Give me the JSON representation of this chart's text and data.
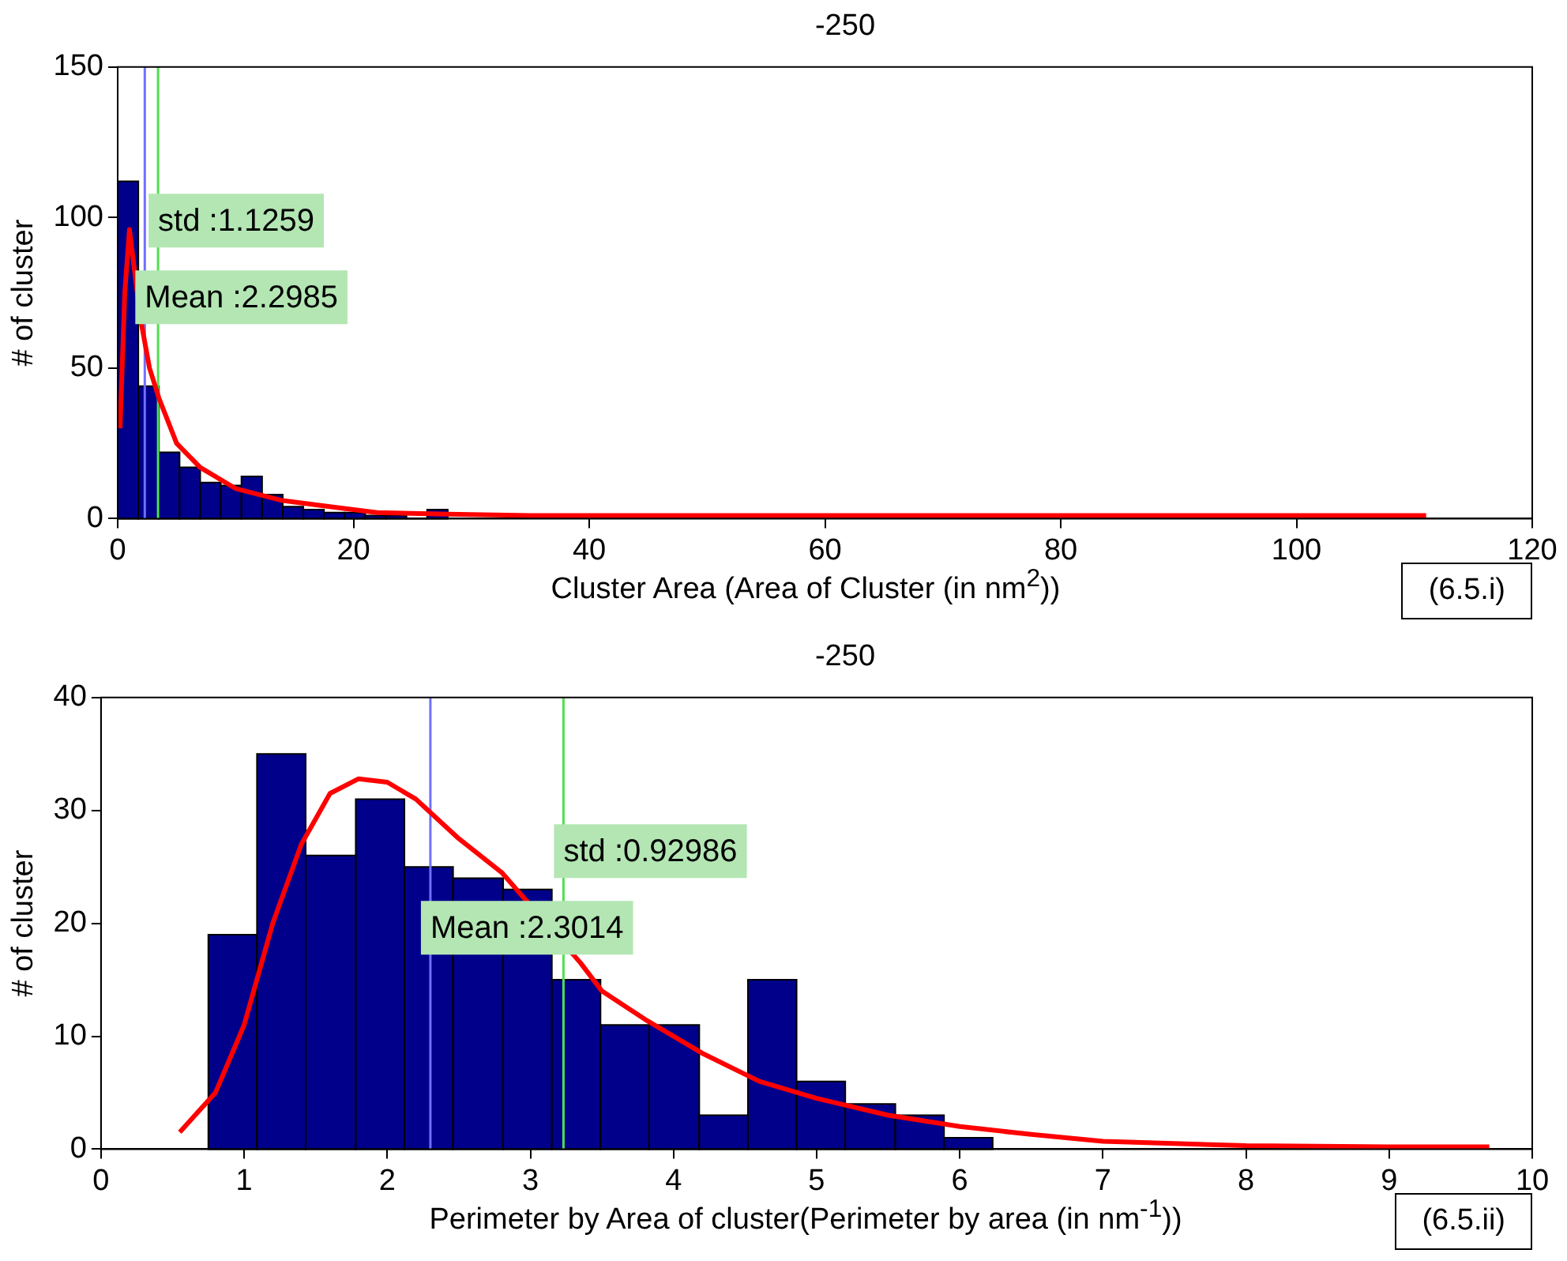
{
  "chart_data": [
    {
      "type": "histogram",
      "title": "-250",
      "xlabel": "Cluster Area (Area of Cluster (in nm$^{2}$))",
      "ylabel": "# of cluster",
      "color": "#00008b",
      "bins": [
        0,
        1.75,
        3.5,
        5.25,
        7,
        8.75,
        10.5,
        12.25,
        14,
        15.75,
        17.5,
        19.25,
        21,
        22.75,
        24.5,
        26.25,
        28
      ],
      "values": [
        112,
        44,
        22,
        17,
        12,
        11,
        14,
        8,
        4,
        3,
        2,
        2,
        1,
        1,
        0,
        3
      ],
      "series": [
        {
          "type": "line",
          "color": "#ff0000",
          "x": [
            0.2,
            0.6,
            1.0,
            1.5,
            2,
            2.7,
            3.5,
            5,
            7,
            10,
            14,
            18,
            22,
            28,
            35,
            50,
            80,
            111
          ],
          "values": [
            30,
            75,
            96,
            80,
            65,
            50,
            40,
            25,
            17,
            10,
            6,
            4,
            2,
            1.5,
            1,
            1,
            1,
            1
          ]
        }
      ],
      "xlim": [
        0,
        120
      ],
      "xticks": [
        0,
        20,
        40,
        60,
        80,
        100,
        120
      ],
      "ylim": [
        0,
        150
      ],
      "yticks": [
        0,
        50,
        100,
        150
      ],
      "ref_lines": [
        {
          "axis": "x",
          "value": 2.2985,
          "color": "#7070ff"
        },
        {
          "axis": "x",
          "value": 3.4244,
          "color": "#50e050"
        }
      ],
      "annotations": [
        "std :1.1259",
        "Mean :2.2985",
        "(6.5.i)"
      ]
    },
    {
      "type": "histogram",
      "title": "-250",
      "xlabel": "Perimeter by Area of cluster(Perimeter by area (in nm$^{-1}$))",
      "ylabel": "# of cluster",
      "color": "#00008b",
      "bins": [
        0.75,
        1.09,
        1.43,
        1.78,
        2.12,
        2.46,
        2.81,
        3.15,
        3.49,
        3.83,
        4.18,
        4.52,
        4.86,
        5.2,
        5.55,
        5.89,
        6.23
      ],
      "values": [
        19,
        35,
        26,
        31,
        25,
        24,
        23,
        15,
        11,
        11,
        3,
        15,
        6,
        4,
        3,
        1
      ],
      "series": [
        {
          "type": "line",
          "color": "#ff0000",
          "x": [
            0.55,
            0.8,
            1.0,
            1.2,
            1.4,
            1.6,
            1.8,
            2.0,
            2.2,
            2.5,
            2.8,
            3.35,
            3.5,
            3.8,
            4.2,
            4.6,
            5.0,
            5.5,
            6.0,
            6.5,
            7,
            8,
            9,
            9.7
          ],
          "values": [
            1.5,
            5,
            11,
            20,
            27,
            31.5,
            32.8,
            32.5,
            31,
            27.5,
            24.5,
            16.5,
            14,
            11.5,
            8.5,
            6,
            4.5,
            3,
            2,
            1.3,
            0.7,
            0.3,
            0.2,
            0.2
          ]
        }
      ],
      "xlim": [
        0,
        10
      ],
      "xticks": [
        0,
        1,
        2,
        3,
        4,
        5,
        6,
        7,
        8,
        9,
        10
      ],
      "ylim": [
        0,
        40
      ],
      "yticks": [
        0,
        10,
        20,
        30,
        40
      ],
      "ref_lines": [
        {
          "axis": "x",
          "value": 2.3014,
          "color": "#7070ff"
        },
        {
          "axis": "x",
          "value": 3.2313,
          "color": "#50e050"
        }
      ],
      "annotations": [
        "std :0.92986",
        "Mean :2.3014",
        "(6.5.ii)"
      ]
    }
  ]
}
